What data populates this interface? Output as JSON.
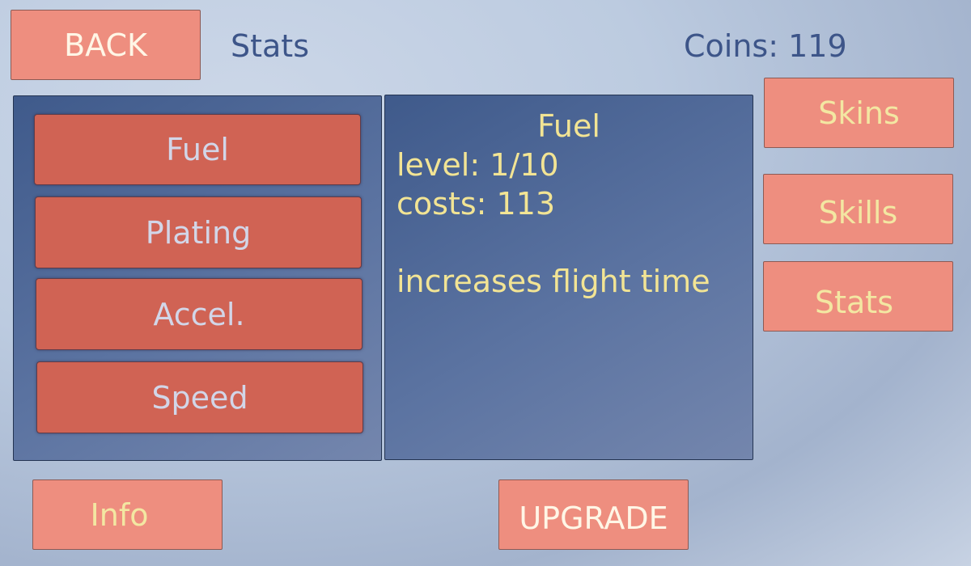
{
  "header": {
    "back_label": "BACK",
    "screen_title": "Stats",
    "coins_label": "Coins: 119"
  },
  "stat_list": [
    {
      "label": "Fuel"
    },
    {
      "label": "Plating"
    },
    {
      "label": "Accel."
    },
    {
      "label": "Speed"
    }
  ],
  "detail": {
    "title": "Fuel",
    "level": "level: 1/10",
    "cost": "costs: 113",
    "description": "increases flight time"
  },
  "side_nav": {
    "skins": "Skins",
    "skills": "Skills",
    "stats": "Stats"
  },
  "footer": {
    "info_label": "Info",
    "upgrade_label": "UPGRADE"
  },
  "colors": {
    "button": "#ee8e7f",
    "stat_button": "#d06354",
    "panel": "#4d6697",
    "accent_text": "#f2e494",
    "title_text": "#3d5589"
  }
}
